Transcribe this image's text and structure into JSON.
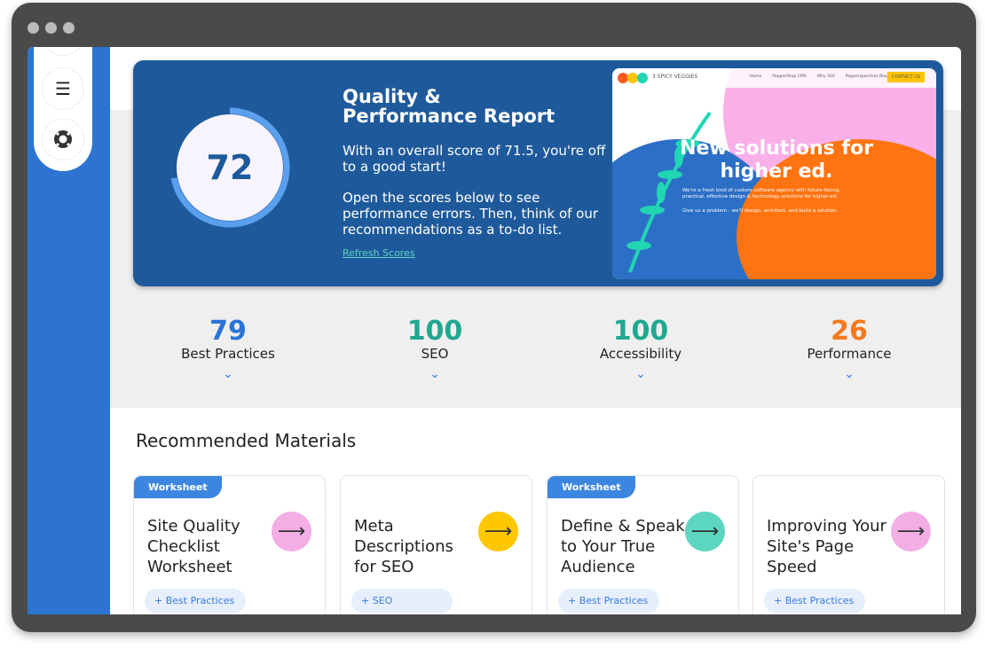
{
  "hero": {
    "score": "72",
    "score_fraction": 0.72,
    "title_line1": "Quality &",
    "title_line2": "Performance Report",
    "text1": "With an overall score of 71.5, you're off to a good start!",
    "text2": "Open the scores below to see performance errors. Then, think of our recommendations as a to-do list.",
    "refresh": "Refresh Scores"
  },
  "preview": {
    "brand": "3 SPICY VEGGIES",
    "nav": [
      "Home",
      "PepperShop CMS",
      "Why 3SV",
      "Pepperspectives Blog"
    ],
    "cta": "CONTACT US",
    "headline": "New solutions for higher ed.",
    "sub1": "We're a fresh kind of custom software agency with future-facing, practical, effective design & technology solutions for higher-ed.",
    "sub2": "Give us a problem - we'll design, architect, and build a solution."
  },
  "stats": [
    {
      "value": "79",
      "label": "Best Practices",
      "color": "#2a74d6"
    },
    {
      "value": "100",
      "label": "SEO",
      "color": "#1fa98f"
    },
    {
      "value": "100",
      "label": "Accessibility",
      "color": "#1fa98f"
    },
    {
      "value": "26",
      "label": "Performance",
      "color": "#f47a1f"
    }
  ],
  "section_title": "Recommended Materials",
  "cards": [
    {
      "tag": "Worksheet",
      "title": "Site Quality Checklist Worksheet",
      "chip": "+ Best Practices",
      "color": "#f3aee6"
    },
    {
      "tag": "",
      "title": "Meta Descriptions for SEO",
      "chip": "+ SEO",
      "color": "#ffc700"
    },
    {
      "tag": "Worksheet",
      "title": "Define & Speak to Your True Audience",
      "chip": "+ Best Practices",
      "color": "#5cd6c0"
    },
    {
      "tag": "",
      "title": "Improving Your Site's Page Speed",
      "chip": "+ Best Practices",
      "color": "#f3aee6"
    }
  ]
}
